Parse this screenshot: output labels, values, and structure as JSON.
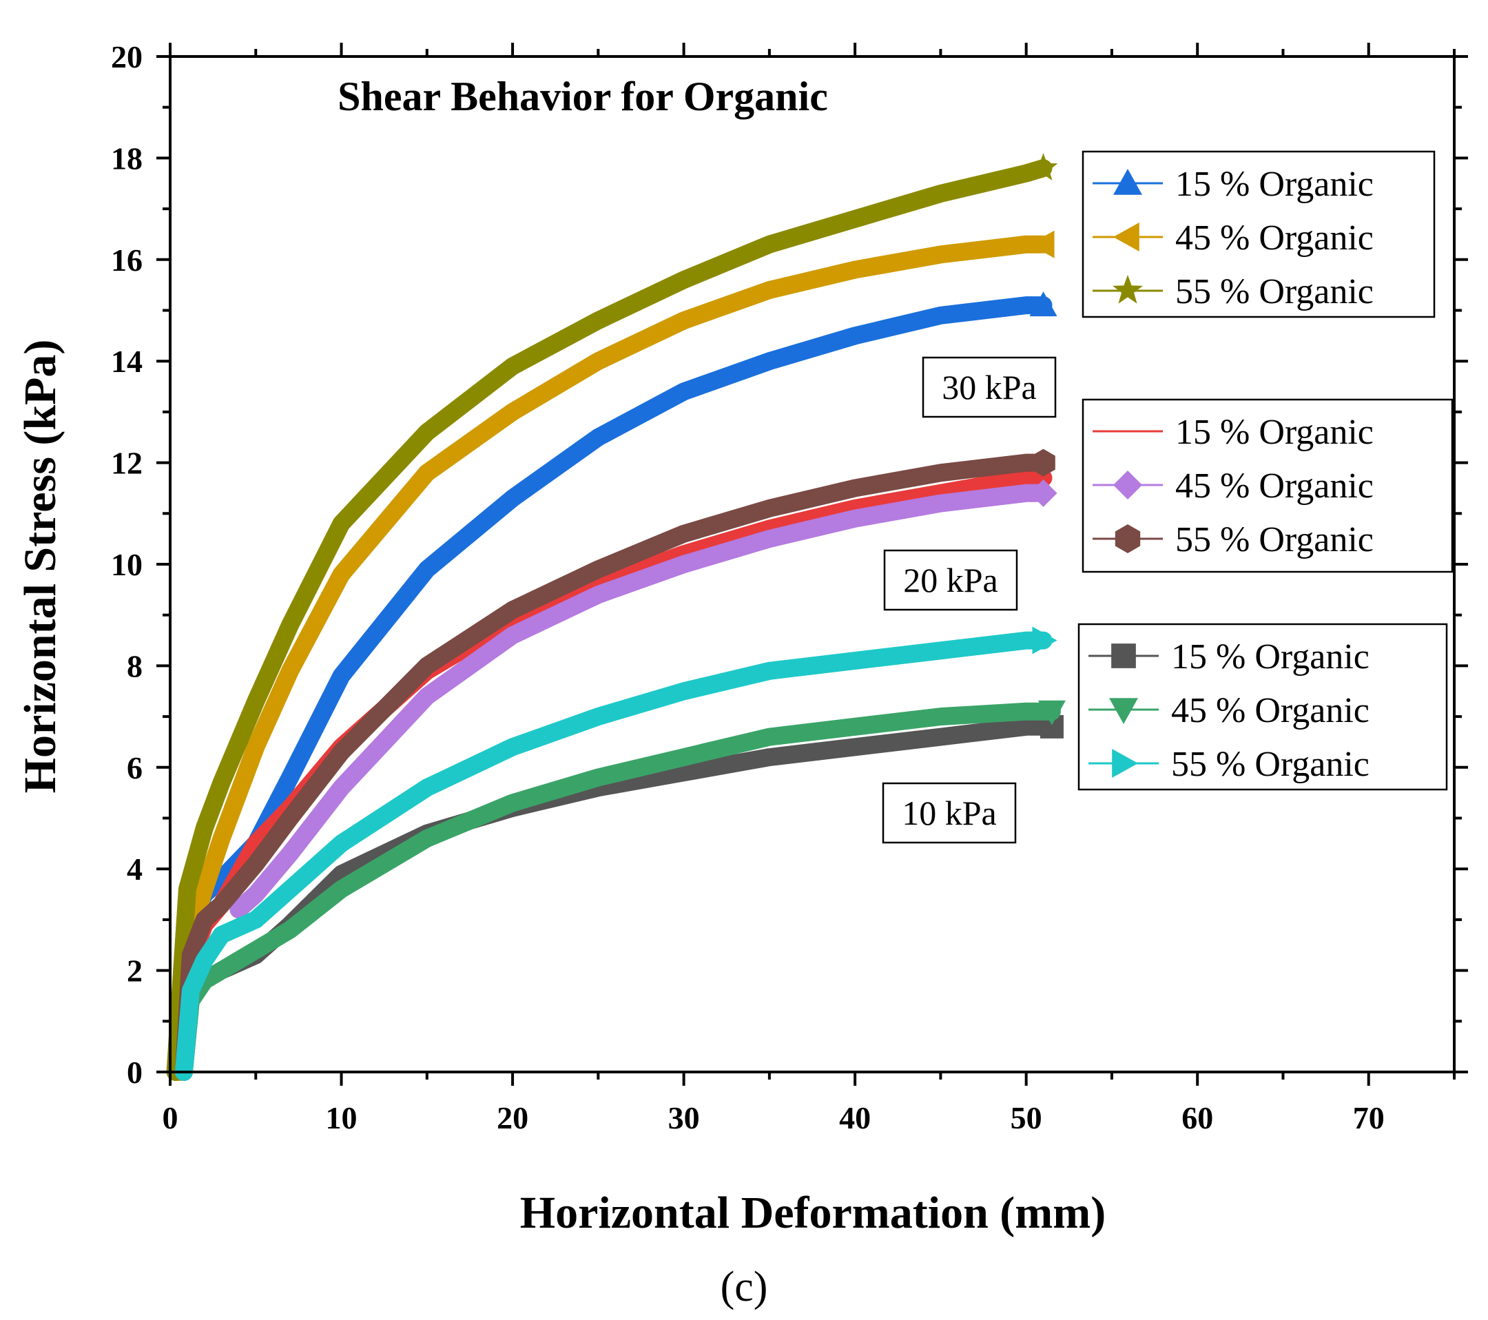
{
  "chart_data": {
    "type": "line",
    "title": "Shear Behavior for Organic",
    "xlabel": "Horizontal Deformation (mm)",
    "ylabel": "Horizontal Stress (kPa)",
    "xlim": [
      0,
      75
    ],
    "ylim": [
      0,
      20
    ],
    "xticks": [
      0,
      10,
      20,
      30,
      40,
      50,
      60,
      70
    ],
    "yticks": [
      0,
      2,
      4,
      6,
      8,
      10,
      12,
      14,
      16,
      18,
      20
    ],
    "caption": "(c)",
    "groups": [
      {
        "annotation": "30 kPa",
        "series": [
          {
            "name": "15 % Organic",
            "color": "#1a6fdc",
            "marker": "triangle-up",
            "x": [
              0.5,
              1,
              2,
              3,
              5,
              7,
              10,
              15,
              20,
              25,
              30,
              35,
              40,
              45,
              50,
              51
            ],
            "y": [
              0,
              2.8,
              3.5,
              3.8,
              4.5,
              5.8,
              7.8,
              9.9,
              11.3,
              12.5,
              13.4,
              14.0,
              14.5,
              14.9,
              15.1,
              15.1
            ]
          },
          {
            "name": "45 % Organic",
            "color": "#d09a00",
            "marker": "triangle-left",
            "x": [
              0.5,
              1,
              2,
              3,
              5,
              7,
              10,
              15,
              20,
              25,
              30,
              35,
              40,
              45,
              50,
              51
            ],
            "y": [
              0,
              2.5,
              3.6,
              4.6,
              6.4,
              7.9,
              9.8,
              11.8,
              13.0,
              14.0,
              14.8,
              15.4,
              15.8,
              16.1,
              16.3,
              16.3
            ]
          },
          {
            "name": "55 % Organic",
            "color": "#8a8a00",
            "marker": "star",
            "x": [
              0.3,
              1,
              2,
              3,
              5,
              7,
              10,
              15,
              20,
              25,
              30,
              35,
              40,
              45,
              50,
              51
            ],
            "y": [
              0,
              3.6,
              4.8,
              5.7,
              7.3,
              8.8,
              10.8,
              12.6,
              13.9,
              14.8,
              15.6,
              16.3,
              16.8,
              17.3,
              17.7,
              17.8
            ]
          }
        ]
      },
      {
        "annotation": "20 kPa",
        "series": [
          {
            "name": "15 % Organic",
            "color": "#e83a3a",
            "marker": "circle",
            "x": [
              0.8,
              1.2,
              2,
              3,
              5,
              7,
              10,
              15,
              20,
              25,
              30,
              35,
              40,
              45,
              50,
              51
            ],
            "y": [
              0,
              2.2,
              2.9,
              3.3,
              4.5,
              5.2,
              6.4,
              7.9,
              8.9,
              9.6,
              10.2,
              10.7,
              11.1,
              11.4,
              11.7,
              11.7
            ]
          },
          {
            "name": "45 % Organic",
            "color": "#b47be0",
            "marker": "diamond",
            "x": [
              4,
              5,
              7,
              10,
              15,
              20,
              25,
              30,
              35,
              40,
              45,
              50,
              51
            ],
            "y": [
              3.2,
              3.5,
              4.3,
              5.6,
              7.4,
              8.6,
              9.4,
              10.0,
              10.5,
              10.9,
              11.2,
              11.4,
              11.4
            ]
          },
          {
            "name": "55 % Organic",
            "color": "#7a4a44",
            "marker": "hexagon",
            "x": [
              0.8,
              1.2,
              2,
              3,
              5,
              7,
              10,
              15,
              20,
              25,
              30,
              35,
              40,
              45,
              50,
              51
            ],
            "y": [
              0,
              2.3,
              3.0,
              3.3,
              4.1,
              5.0,
              6.3,
              8.0,
              9.1,
              9.9,
              10.6,
              11.1,
              11.5,
              11.8,
              12.0,
              12.0
            ]
          }
        ]
      },
      {
        "annotation": "10 kPa",
        "series": [
          {
            "name": "15 % Organic",
            "color": "#555555",
            "marker": "square",
            "x": [
              0.8,
              1.2,
              2,
              3,
              5,
              7,
              10,
              15,
              20,
              25,
              30,
              35,
              40,
              45,
              50,
              51.5
            ],
            "y": [
              0,
              1.4,
              1.8,
              2.0,
              2.3,
              2.9,
              3.9,
              4.7,
              5.2,
              5.6,
              5.9,
              6.2,
              6.4,
              6.6,
              6.8,
              6.8
            ]
          },
          {
            "name": "45 % Organic",
            "color": "#3aa468",
            "marker": "triangle-down",
            "x": [
              0.8,
              1.2,
              2,
              3,
              5,
              7,
              10,
              15,
              20,
              25,
              30,
              35,
              40,
              45,
              50,
              51.5
            ],
            "y": [
              0,
              1.4,
              1.8,
              2.0,
              2.4,
              2.8,
              3.6,
              4.6,
              5.3,
              5.8,
              6.2,
              6.6,
              6.8,
              7.0,
              7.1,
              7.1
            ]
          },
          {
            "name": "55 % Organic",
            "color": "#1ec8c8",
            "marker": "triangle-right",
            "x": [
              0.8,
              1.2,
              2,
              3,
              5,
              7,
              10,
              15,
              20,
              25,
              30,
              35,
              40,
              45,
              50,
              51
            ],
            "y": [
              0,
              1.6,
              2.2,
              2.7,
              3.0,
              3.6,
              4.5,
              5.6,
              6.4,
              7.0,
              7.5,
              7.9,
              8.1,
              8.3,
              8.5,
              8.5
            ]
          }
        ]
      }
    ]
  }
}
